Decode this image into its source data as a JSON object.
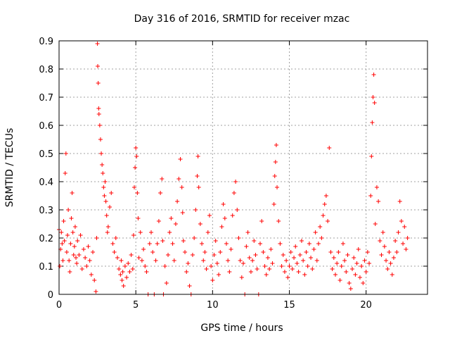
{
  "chart_data": {
    "type": "scatter",
    "title": "Day 316 of 2016, SRMTID for receiver mzac",
    "xlabel": "GPS time / hours",
    "ylabel": "SRMTID / TECUs",
    "xlim": [
      0,
      24
    ],
    "ylim": [
      0,
      0.9
    ],
    "xticks": [
      0,
      5,
      10,
      15,
      20
    ],
    "xtick_labels": [
      "0",
      "5",
      "10",
      "15",
      "20"
    ],
    "yticks": [
      0,
      0.1,
      0.2,
      0.3,
      0.4,
      0.5,
      0.6,
      0.7,
      0.8,
      0.9
    ],
    "ytick_labels": [
      "0",
      "0.1",
      "0.2",
      "0.3",
      "0.4",
      "0.5",
      "0.6",
      "0.7",
      "0.8",
      "0.9"
    ],
    "grid": true,
    "marker": "+",
    "color": "#ff0000",
    "series": [
      {
        "name": "SRMTID",
        "points": [
          [
            0.0,
            0.23
          ],
          [
            0.05,
            0.1
          ],
          [
            0.1,
            0.16
          ],
          [
            0.15,
            0.22
          ],
          [
            0.2,
            0.18
          ],
          [
            0.25,
            0.12
          ],
          [
            0.3,
            0.26
          ],
          [
            0.35,
            0.19
          ],
          [
            0.4,
            0.43
          ],
          [
            0.45,
            0.5
          ],
          [
            0.5,
            0.15
          ],
          [
            0.55,
            0.21
          ],
          [
            0.6,
            0.3
          ],
          [
            0.65,
            0.12
          ],
          [
            0.7,
            0.08
          ],
          [
            0.75,
            0.18
          ],
          [
            0.8,
            0.27
          ],
          [
            0.85,
            0.36
          ],
          [
            0.9,
            0.22
          ],
          [
            0.95,
            0.14
          ],
          [
            1.0,
            0.17
          ],
          [
            1.05,
            0.24
          ],
          [
            1.1,
            0.13
          ],
          [
            1.15,
            0.11
          ],
          [
            1.2,
            0.19
          ],
          [
            1.3,
            0.14
          ],
          [
            1.4,
            0.21
          ],
          [
            1.5,
            0.09
          ],
          [
            1.6,
            0.16
          ],
          [
            1.7,
            0.13
          ],
          [
            1.8,
            0.1
          ],
          [
            1.9,
            0.17
          ],
          [
            2.0,
            0.12
          ],
          [
            2.1,
            0.07
          ],
          [
            2.2,
            0.15
          ],
          [
            2.3,
            0.05
          ],
          [
            2.4,
            0.01
          ],
          [
            2.45,
            0.2
          ],
          [
            2.5,
            0.89
          ],
          [
            2.52,
            0.81
          ],
          [
            2.55,
            0.75
          ],
          [
            2.58,
            0.66
          ],
          [
            2.6,
            0.64
          ],
          [
            2.65,
            0.6
          ],
          [
            2.7,
            0.55
          ],
          [
            2.75,
            0.5
          ],
          [
            2.8,
            0.46
          ],
          [
            2.85,
            0.43
          ],
          [
            2.9,
            0.38
          ],
          [
            2.95,
            0.35
          ],
          [
            3.0,
            0.4
          ],
          [
            3.05,
            0.33
          ],
          [
            3.1,
            0.28
          ],
          [
            3.15,
            0.22
          ],
          [
            3.2,
            0.24
          ],
          [
            3.3,
            0.31
          ],
          [
            3.4,
            0.36
          ],
          [
            3.5,
            0.18
          ],
          [
            3.6,
            0.15
          ],
          [
            3.7,
            0.2
          ],
          [
            3.8,
            0.13
          ],
          [
            3.9,
            0.09
          ],
          [
            4.0,
            0.07
          ],
          [
            4.05,
            0.12
          ],
          [
            4.1,
            0.05
          ],
          [
            4.15,
            0.08
          ],
          [
            4.2,
            0.03
          ],
          [
            4.3,
            0.1
          ],
          [
            4.4,
            0.06
          ],
          [
            4.5,
            0.11
          ],
          [
            4.6,
            0.08
          ],
          [
            4.7,
            0.14
          ],
          [
            4.8,
            0.09
          ],
          [
            4.85,
            0.21
          ],
          [
            4.9,
            0.38
          ],
          [
            4.95,
            0.45
          ],
          [
            5.0,
            0.52
          ],
          [
            5.05,
            0.49
          ],
          [
            5.1,
            0.36
          ],
          [
            5.15,
            0.27
          ],
          [
            5.2,
            0.13
          ],
          [
            5.3,
            0.22
          ],
          [
            5.4,
            0.12
          ],
          [
            5.5,
            0.16
          ],
          [
            5.6,
            0.1
          ],
          [
            5.7,
            0.08
          ],
          [
            5.8,
            0.0
          ],
          [
            5.9,
            0.18
          ],
          [
            6.0,
            0.22
          ],
          [
            6.1,
            0.15
          ],
          [
            6.2,
            0.0
          ],
          [
            6.3,
            0.12
          ],
          [
            6.4,
            0.18
          ],
          [
            6.5,
            0.26
          ],
          [
            6.6,
            0.36
          ],
          [
            6.7,
            0.41
          ],
          [
            6.75,
            0.19
          ],
          [
            6.8,
            0.0
          ],
          [
            6.9,
            0.1
          ],
          [
            7.0,
            0.04
          ],
          [
            7.1,
            0.14
          ],
          [
            7.2,
            0.22
          ],
          [
            7.3,
            0.27
          ],
          [
            7.4,
            0.18
          ],
          [
            7.5,
            0.12
          ],
          [
            7.6,
            0.25
          ],
          [
            7.7,
            0.33
          ],
          [
            7.8,
            0.41
          ],
          [
            7.9,
            0.48
          ],
          [
            8.0,
            0.38
          ],
          [
            8.05,
            0.29
          ],
          [
            8.1,
            0.19
          ],
          [
            8.2,
            0.15
          ],
          [
            8.3,
            0.08
          ],
          [
            8.4,
            0.11
          ],
          [
            8.5,
            0.03
          ],
          [
            8.6,
            0.0
          ],
          [
            8.7,
            0.14
          ],
          [
            8.8,
            0.2
          ],
          [
            8.9,
            0.3
          ],
          [
            9.0,
            0.42
          ],
          [
            9.05,
            0.49
          ],
          [
            9.1,
            0.38
          ],
          [
            9.2,
            0.25
          ],
          [
            9.3,
            0.18
          ],
          [
            9.4,
            0.12
          ],
          [
            9.5,
            0.15
          ],
          [
            9.6,
            0.09
          ],
          [
            9.7,
            0.22
          ],
          [
            9.8,
            0.28
          ],
          [
            9.9,
            0.1
          ],
          [
            10.0,
            0.05
          ],
          [
            10.1,
            0.14
          ],
          [
            10.2,
            0.19
          ],
          [
            10.3,
            0.11
          ],
          [
            10.4,
            0.07
          ],
          [
            10.5,
            0.15
          ],
          [
            10.6,
            0.24
          ],
          [
            10.7,
            0.32
          ],
          [
            10.8,
            0.27
          ],
          [
            10.9,
            0.18
          ],
          [
            11.0,
            0.12
          ],
          [
            11.1,
            0.08
          ],
          [
            11.2,
            0.16
          ],
          [
            11.3,
            0.28
          ],
          [
            11.4,
            0.36
          ],
          [
            11.5,
            0.4
          ],
          [
            11.6,
            0.3
          ],
          [
            11.7,
            0.2
          ],
          [
            11.8,
            0.12
          ],
          [
            11.9,
            0.06
          ],
          [
            12.0,
            0.11
          ],
          [
            12.1,
            0.0
          ],
          [
            12.2,
            0.17
          ],
          [
            12.3,
            0.22
          ],
          [
            12.4,
            0.13
          ],
          [
            12.5,
            0.08
          ],
          [
            12.6,
            0.12
          ],
          [
            12.7,
            0.19
          ],
          [
            12.8,
            0.14
          ],
          [
            12.9,
            0.09
          ],
          [
            13.0,
            0.0
          ],
          [
            13.1,
            0.18
          ],
          [
            13.2,
            0.26
          ],
          [
            13.3,
            0.15
          ],
          [
            13.4,
            0.1
          ],
          [
            13.5,
            0.07
          ],
          [
            13.6,
            0.13
          ],
          [
            13.7,
            0.09
          ],
          [
            13.8,
            0.16
          ],
          [
            13.9,
            0.11
          ],
          [
            14.0,
            0.32
          ],
          [
            14.05,
            0.42
          ],
          [
            14.1,
            0.47
          ],
          [
            14.15,
            0.53
          ],
          [
            14.2,
            0.38
          ],
          [
            14.3,
            0.26
          ],
          [
            14.4,
            0.18
          ],
          [
            14.5,
            0.1
          ],
          [
            14.6,
            0.14
          ],
          [
            14.7,
            0.08
          ],
          [
            14.8,
            0.12
          ],
          [
            14.9,
            0.06
          ],
          [
            15.0,
            0.1
          ],
          [
            15.1,
            0.15
          ],
          [
            15.2,
            0.09
          ],
          [
            15.3,
            0.13
          ],
          [
            15.4,
            0.17
          ],
          [
            15.5,
            0.11
          ],
          [
            15.6,
            0.08
          ],
          [
            15.7,
            0.14
          ],
          [
            15.8,
            0.19
          ],
          [
            15.9,
            0.12
          ],
          [
            16.0,
            0.07
          ],
          [
            16.1,
            0.15
          ],
          [
            16.2,
            0.1
          ],
          [
            16.3,
            0.18
          ],
          [
            16.4,
            0.13
          ],
          [
            16.5,
            0.09
          ],
          [
            16.6,
            0.16
          ],
          [
            16.7,
            0.22
          ],
          [
            16.8,
            0.12
          ],
          [
            16.9,
            0.18
          ],
          [
            17.0,
            0.24
          ],
          [
            17.1,
            0.2
          ],
          [
            17.2,
            0.28
          ],
          [
            17.3,
            0.32
          ],
          [
            17.4,
            0.35
          ],
          [
            17.5,
            0.26
          ],
          [
            17.6,
            0.52
          ],
          [
            17.7,
            0.15
          ],
          [
            17.8,
            0.09
          ],
          [
            17.9,
            0.13
          ],
          [
            18.0,
            0.07
          ],
          [
            18.1,
            0.11
          ],
          [
            18.2,
            0.15
          ],
          [
            18.3,
            0.05
          ],
          [
            18.4,
            0.1
          ],
          [
            18.5,
            0.18
          ],
          [
            18.6,
            0.12
          ],
          [
            18.7,
            0.08
          ],
          [
            18.8,
            0.14
          ],
          [
            18.9,
            0.04
          ],
          [
            19.0,
            0.02
          ],
          [
            19.1,
            0.09
          ],
          [
            19.2,
            0.13
          ],
          [
            19.3,
            0.07
          ],
          [
            19.4,
            0.11
          ],
          [
            19.5,
            0.16
          ],
          [
            19.6,
            0.06
          ],
          [
            19.7,
            0.1
          ],
          [
            19.8,
            0.04
          ],
          [
            19.9,
            0.12
          ],
          [
            20.0,
            0.08
          ],
          [
            20.1,
            0.15
          ],
          [
            20.2,
            0.11
          ],
          [
            20.3,
            0.35
          ],
          [
            20.35,
            0.49
          ],
          [
            20.4,
            0.61
          ],
          [
            20.45,
            0.7
          ],
          [
            20.5,
            0.78
          ],
          [
            20.55,
            0.68
          ],
          [
            20.6,
            0.25
          ],
          [
            20.7,
            0.38
          ],
          [
            20.8,
            0.33
          ],
          [
            20.9,
            0.19
          ],
          [
            21.0,
            0.14
          ],
          [
            21.1,
            0.22
          ],
          [
            21.2,
            0.17
          ],
          [
            21.3,
            0.12
          ],
          [
            21.4,
            0.09
          ],
          [
            21.5,
            0.15
          ],
          [
            21.6,
            0.11
          ],
          [
            21.7,
            0.07
          ],
          [
            21.8,
            0.13
          ],
          [
            21.9,
            0.19
          ],
          [
            22.0,
            0.15
          ],
          [
            22.1,
            0.22
          ],
          [
            22.2,
            0.33
          ],
          [
            22.3,
            0.26
          ],
          [
            22.4,
            0.18
          ],
          [
            22.5,
            0.24
          ],
          [
            22.6,
            0.16
          ],
          [
            22.7,
            0.2
          ]
        ]
      }
    ]
  }
}
